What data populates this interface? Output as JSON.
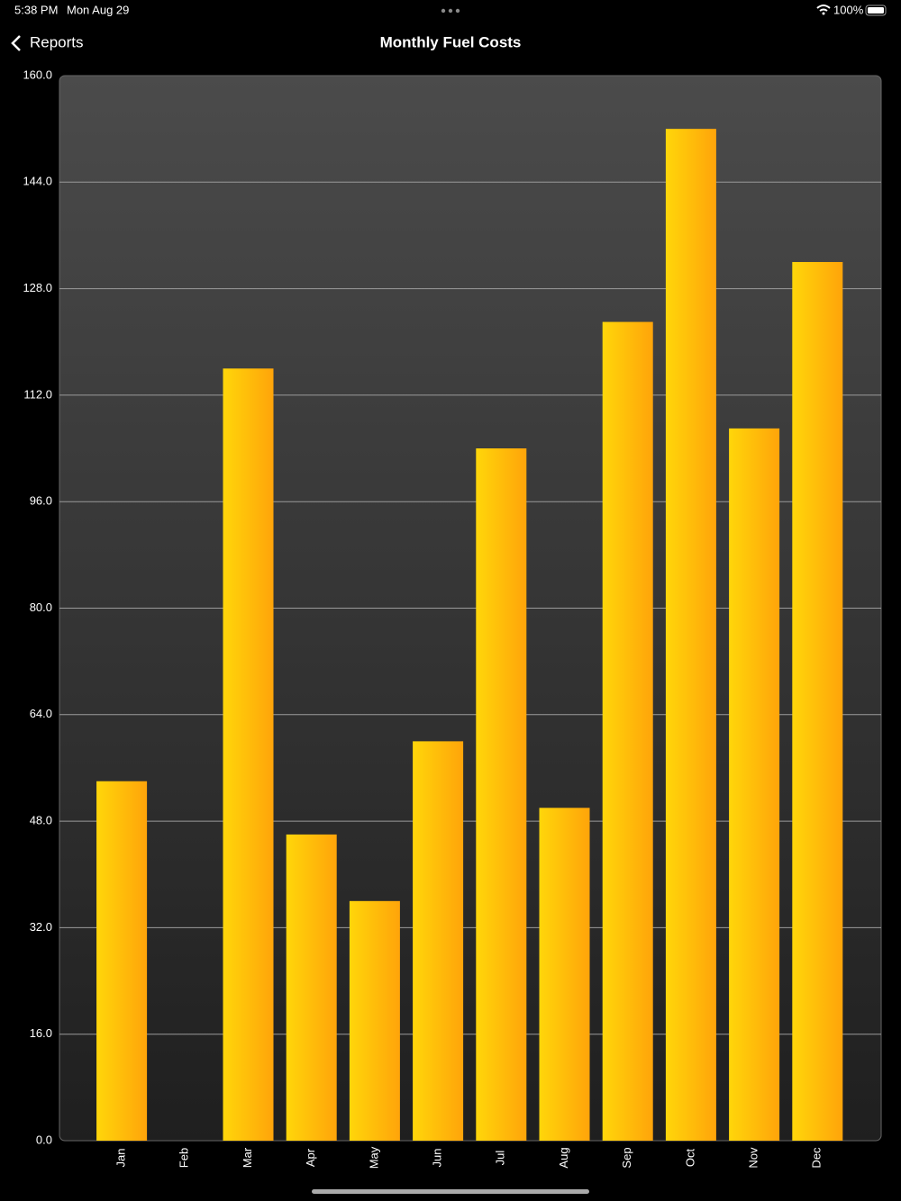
{
  "status_bar": {
    "time": "5:38 PM",
    "date": "Mon Aug 29",
    "battery": "100%"
  },
  "nav": {
    "back": "Reports",
    "title": "Monthly Fuel Costs"
  },
  "chart_data": {
    "type": "bar",
    "categories": [
      "Jan",
      "Feb",
      "Mar",
      "Apr",
      "May",
      "Jun",
      "Jul",
      "Aug",
      "Sep",
      "Oct",
      "Nov",
      "Dec"
    ],
    "values": [
      54,
      0,
      116,
      46,
      36,
      60,
      104,
      50,
      123,
      152,
      107,
      132
    ],
    "gradient": [
      "#ffd60a",
      "#ffa40a"
    ],
    "ylim": [
      0,
      160
    ],
    "yticks": [
      {
        "value": 0,
        "label": "0.0"
      },
      {
        "value": 16,
        "label": "16.0"
      },
      {
        "value": 32,
        "label": "32.0"
      },
      {
        "value": 48,
        "label": "48.0"
      },
      {
        "value": 64,
        "label": "64.0"
      },
      {
        "value": 80,
        "label": "80.0"
      },
      {
        "value": 96,
        "label": "96.0"
      },
      {
        "value": 112,
        "label": "112.0"
      },
      {
        "value": 128,
        "label": "128.0"
      },
      {
        "value": 144,
        "label": "144.0"
      },
      {
        "value": 160,
        "label": "160.0"
      }
    ],
    "grid": true
  }
}
